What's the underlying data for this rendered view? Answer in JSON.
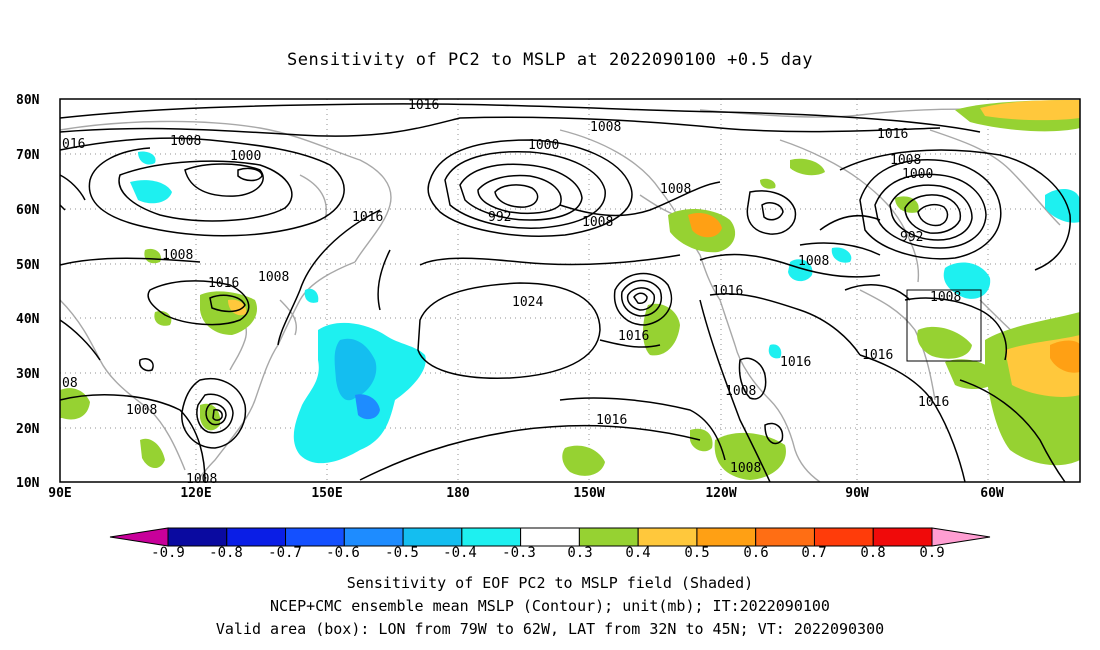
{
  "title": "Sensitivity of PC2 to MSLP at 2022090100 +0.5 day",
  "captions": {
    "line1": "Sensitivity of EOF PC2 to MSLP field (Shaded)",
    "line2": "NCEP+CMC ensemble mean MSLP (Contour); unit(mb); IT:2022090100",
    "line3": "Valid area (box): LON from 79W to 62W, LAT from 32N to 45N; VT: 2022090300"
  },
  "axes": {
    "lat_ticks": [
      "80N",
      "70N",
      "60N",
      "50N",
      "40N",
      "30N",
      "20N",
      "10N"
    ],
    "lon_ticks": [
      "90E",
      "120E",
      "150E",
      "180",
      "150W",
      "120W",
      "90W",
      "60W"
    ]
  },
  "colorbar": {
    "labels": [
      "-0.9",
      "-0.8",
      "-0.7",
      "-0.6",
      "-0.5",
      "-0.4",
      "-0.3",
      "0.3",
      "0.4",
      "0.5",
      "0.6",
      "0.7",
      "0.8",
      "0.9"
    ],
    "colors": [
      "#0a0aa0",
      "#0a1ee6",
      "#1450ff",
      "#1e8cff",
      "#14bef0",
      "#1ef0f0",
      "#ffffff",
      "#96d232",
      "#ffc83c",
      "#ffa014",
      "#ff6e14",
      "#ff3c0a",
      "#f00a0a"
    ],
    "low_end_color": "#c8009a",
    "high_end_color": "#ff9ed2"
  },
  "contour_labels": [
    "1016",
    "1008",
    "016",
    "1000",
    "992",
    "1008",
    "1016",
    "1000",
    "1016",
    "1008",
    "1008",
    "1024",
    "1016",
    "08",
    "1008",
    "1008",
    "1016",
    "1008",
    "1016",
    "1008",
    "1000",
    "992",
    "1008",
    "1016",
    "1016",
    "1016",
    "1008",
    "1016"
  ],
  "valid_box": {
    "lon_from": "79W",
    "lon_to": "62W",
    "lat_from": "32N",
    "lat_to": "45N"
  }
}
